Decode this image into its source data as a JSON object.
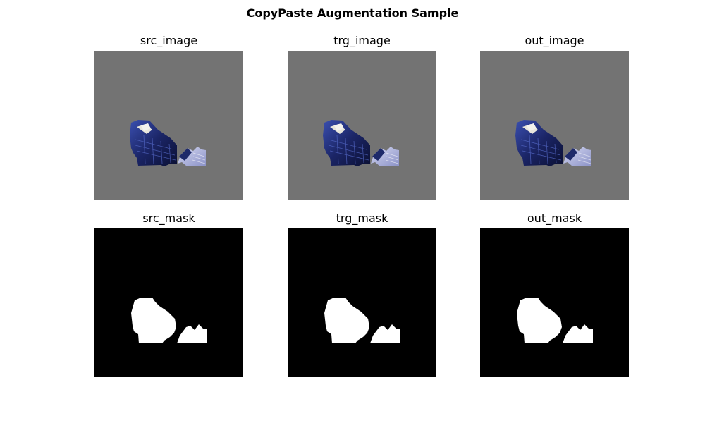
{
  "figure": {
    "title": "CopyPaste Augmentation Sample"
  },
  "panels": {
    "src_image": {
      "title": "src_image"
    },
    "trg_image": {
      "title": "trg_image"
    },
    "out_image": {
      "title": "out_image"
    },
    "src_mask": {
      "title": "src_mask"
    },
    "trg_mask": {
      "title": "trg_mask"
    },
    "out_mask": {
      "title": "out_mask"
    }
  },
  "colors": {
    "image_background": "#737373",
    "mask_background": "#000000",
    "mask_foreground": "#ffffff",
    "bed_cover": "#1d2a6e",
    "chair_fabric": "#b8bde0"
  }
}
